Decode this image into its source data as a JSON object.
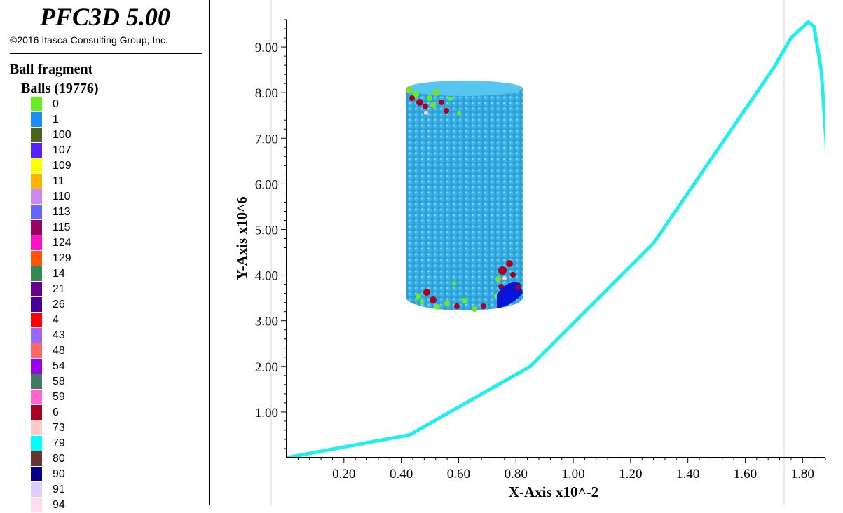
{
  "app": {
    "title": "PFC3D 5.00",
    "copyright": "©2016 Itasca Consulting Group, Inc."
  },
  "legend": {
    "heading": "Ball fragment",
    "subheading": "Balls (19776)",
    "items": [
      {
        "label": "0",
        "color": "#66ee22"
      },
      {
        "label": "1",
        "color": "#1e8cff"
      },
      {
        "label": "100",
        "color": "#4a6420"
      },
      {
        "label": "107",
        "color": "#5522ff"
      },
      {
        "label": "109",
        "color": "#ffff00"
      },
      {
        "label": "11",
        "color": "#ffb400"
      },
      {
        "label": "110",
        "color": "#cc88ee"
      },
      {
        "label": "113",
        "color": "#6666ff"
      },
      {
        "label": "115",
        "color": "#990066"
      },
      {
        "label": "124",
        "color": "#ff11cc"
      },
      {
        "label": "129",
        "color": "#ff5500"
      },
      {
        "label": "14",
        "color": "#338855"
      },
      {
        "label": "21",
        "color": "#660088"
      },
      {
        "label": "26",
        "color": "#440099"
      },
      {
        "label": "4",
        "color": "#ff0000"
      },
      {
        "label": "43",
        "color": "#9966ff"
      },
      {
        "label": "48",
        "color": "#ff6666"
      },
      {
        "label": "54",
        "color": "#9900ee"
      },
      {
        "label": "58",
        "color": "#447766"
      },
      {
        "label": "59",
        "color": "#ff66cc"
      },
      {
        "label": "6",
        "color": "#aa0022"
      },
      {
        "label": "73",
        "color": "#ffcccc"
      },
      {
        "label": "79",
        "color": "#00ffff"
      },
      {
        "label": "80",
        "color": "#663333"
      },
      {
        "label": "90",
        "color": "#000088"
      },
      {
        "label": "91",
        "color": "#ddccff"
      },
      {
        "label": "94",
        "color": "#ffddee"
      }
    ]
  },
  "chart_data": {
    "type": "line",
    "xlabel": "X-Axis x10^-2",
    "ylabel": "Y-Axis x10^6",
    "xlim": [
      0.0,
      1.88
    ],
    "ylim": [
      0.0,
      9.6
    ],
    "x_ticks": [
      "0.20",
      "0.40",
      "0.60",
      "0.80",
      "1.00",
      "1.20",
      "1.40",
      "1.60",
      "1.80"
    ],
    "y_ticks": [
      "1.00",
      "2.00",
      "3.00",
      "4.00",
      "5.00",
      "6.00",
      "7.00",
      "8.00",
      "9.00"
    ],
    "grid": false,
    "line_color": "#22eeee",
    "series": [
      {
        "x": [
          0.0,
          0.43,
          0.85,
          1.28,
          1.7,
          1.76,
          1.82,
          1.84,
          1.865,
          1.885
        ],
        "y": [
          0.0,
          0.5,
          2.0,
          4.7,
          8.55,
          9.2,
          9.55,
          9.45,
          8.5,
          6.7
        ]
      }
    ]
  }
}
